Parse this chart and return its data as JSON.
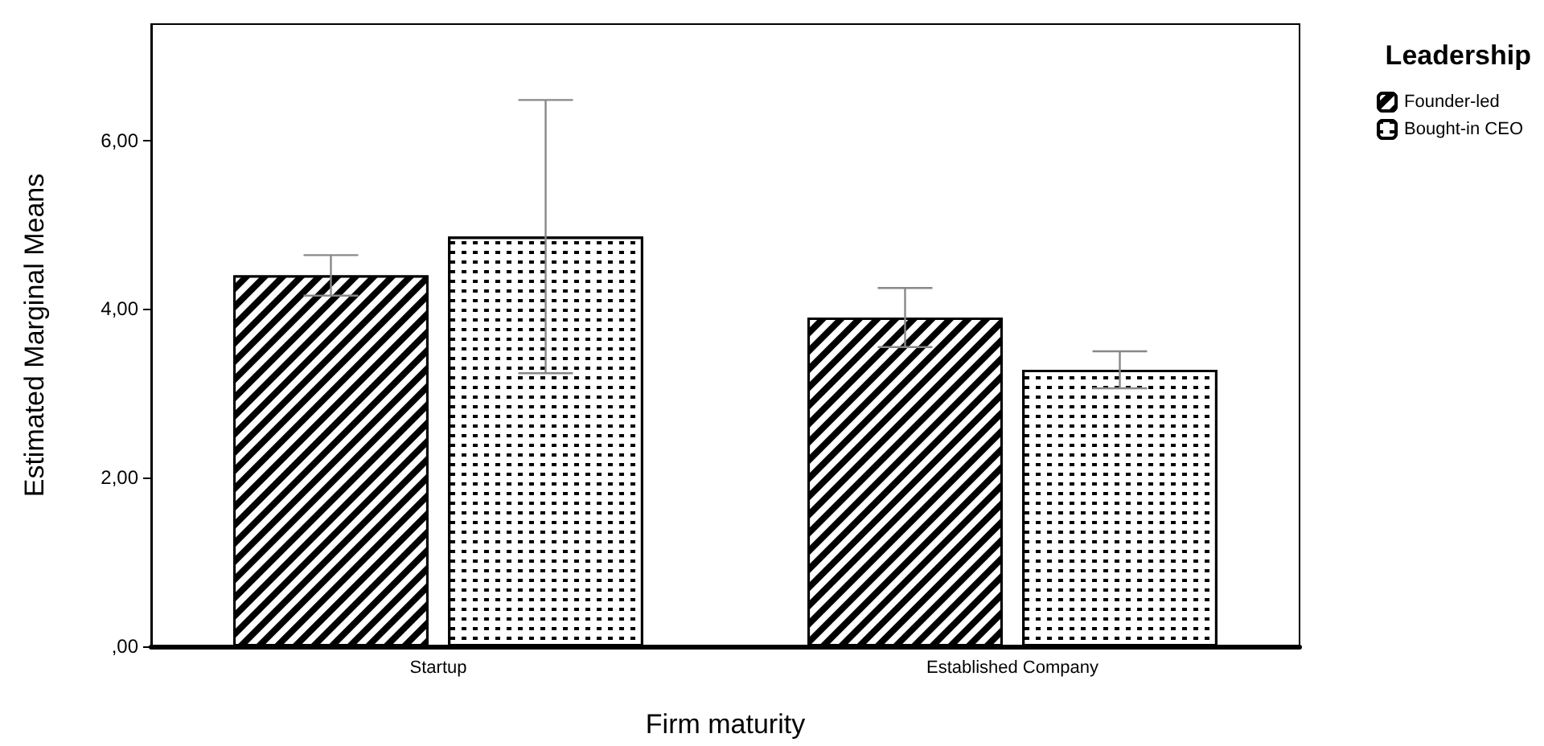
{
  "chart_data": {
    "type": "bar",
    "xlabel": "Firm maturity",
    "ylabel": "Estimated Marginal Means",
    "legend_title": "Leadership",
    "legend": "top right",
    "categories": [
      "Startup",
      "Established Company"
    ],
    "series": [
      {
        "name": "Founder-led",
        "color": "#000000",
        "values": [
          4.4,
          3.9
        ],
        "errors": [
          0.24,
          0.35
        ]
      },
      {
        "name": "Bought-in CEO",
        "color": "#ffffff",
        "values": [
          4.86,
          3.28
        ],
        "errors": [
          1.62,
          0.22
        ]
      }
    ],
    "ylim": [
      0,
      7.38
    ],
    "yticks": [
      {
        "value": 0,
        "label": ",00"
      },
      {
        "value": 2,
        "label": "2,00"
      },
      {
        "value": 4,
        "label": "4,00"
      },
      {
        "value": 6,
        "label": "6,00"
      }
    ],
    "grid": false
  }
}
